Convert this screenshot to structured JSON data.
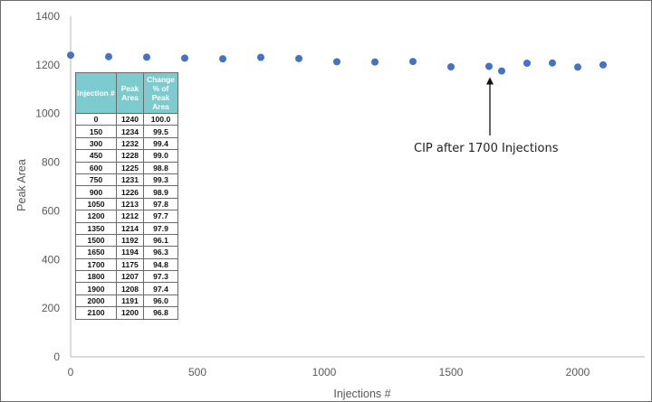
{
  "chart_data": {
    "type": "scatter",
    "title": "",
    "xlabel": "Injections #",
    "ylabel": "Peak Area",
    "xlim": [
      0,
      2300
    ],
    "ylim": [
      0,
      1400
    ],
    "x_ticks": [
      0,
      500,
      1000,
      1500,
      2000
    ],
    "y_ticks": [
      0,
      200,
      400,
      600,
      800,
      1000,
      1200,
      1400
    ],
    "grid": false,
    "point_color": "#4472c4",
    "series": [
      {
        "x": [
          0,
          150,
          300,
          450,
          600,
          750,
          900,
          1050,
          1200,
          1350,
          1500,
          1650,
          1700,
          1800,
          1900,
          2000,
          2100
        ],
        "y": [
          1240,
          1234,
          1232,
          1228,
          1225,
          1231,
          1226,
          1213,
          1212,
          1214,
          1192,
          1194,
          1175,
          1207,
          1208,
          1191,
          1200
        ]
      }
    ],
    "annotations": [
      {
        "text": "CIP after 1700 Injections",
        "x": 1650,
        "y": 1194,
        "arrow": "up"
      }
    ]
  },
  "table": {
    "header_color": "#7ecbcf",
    "headers": [
      "Injection #",
      "Peak Area",
      "Change % of Peak Area"
    ],
    "rows": [
      [
        "0",
        "1240",
        "100.0"
      ],
      [
        "150",
        "1234",
        "99.5"
      ],
      [
        "300",
        "1232",
        "99.4"
      ],
      [
        "450",
        "1228",
        "99.0"
      ],
      [
        "600",
        "1225",
        "98.8"
      ],
      [
        "750",
        "1231",
        "99.3"
      ],
      [
        "900",
        "1226",
        "98.9"
      ],
      [
        "1050",
        "1213",
        "97.8"
      ],
      [
        "1200",
        "1212",
        "97.7"
      ],
      [
        "1350",
        "1214",
        "97.9"
      ],
      [
        "1500",
        "1192",
        "96.1"
      ],
      [
        "1650",
        "1194",
        "96.3"
      ],
      [
        "1700",
        "1175",
        "94.8"
      ],
      [
        "1800",
        "1207",
        "97.3"
      ],
      [
        "1900",
        "1208",
        "97.4"
      ],
      [
        "2000",
        "1191",
        "96.0"
      ],
      [
        "2100",
        "1200",
        "96.8"
      ]
    ]
  }
}
